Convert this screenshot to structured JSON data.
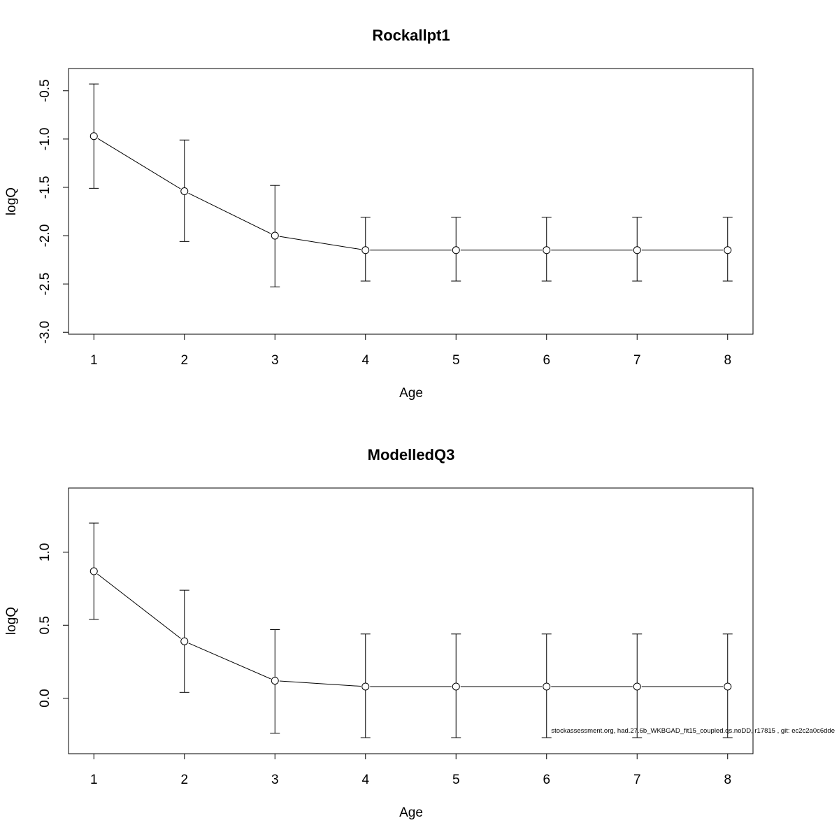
{
  "chart_data": [
    {
      "type": "line",
      "title": "Rockallpt1",
      "xlabel": "Age",
      "ylabel": "logQ",
      "x": [
        1,
        2,
        3,
        4,
        5,
        6,
        7,
        8
      ],
      "y": [
        -0.97,
        -1.54,
        -2.0,
        -2.15,
        -2.15,
        -2.15,
        -2.15,
        -2.15
      ],
      "lower": [
        -1.51,
        -2.06,
        -2.53,
        -2.47,
        -2.47,
        -2.47,
        -2.47,
        -2.47
      ],
      "upper": [
        -0.43,
        -1.01,
        -1.48,
        -1.81,
        -1.81,
        -1.81,
        -1.81,
        -1.81
      ],
      "xlim": [
        0.72,
        8.28
      ],
      "ylim": [
        -3.02,
        -0.27
      ],
      "xticks": [
        "1",
        "2",
        "3",
        "4",
        "5",
        "6",
        "7",
        "8"
      ],
      "yticks": [
        "-3.0",
        "-2.5",
        "-2.0",
        "-1.5",
        "-1.0",
        "-0.5"
      ],
      "ytick_values": [
        -3.0,
        -2.5,
        -2.0,
        -1.5,
        -1.0,
        -0.5
      ],
      "grid": false
    },
    {
      "type": "line",
      "title": "ModelledQ3",
      "xlabel": "Age",
      "ylabel": "logQ",
      "x": [
        1,
        2,
        3,
        4,
        5,
        6,
        7,
        8
      ],
      "y": [
        0.87,
        0.39,
        0.12,
        0.08,
        0.08,
        0.08,
        0.08,
        0.08
      ],
      "lower": [
        0.54,
        0.04,
        -0.24,
        -0.27,
        -0.27,
        -0.27,
        -0.27,
        -0.27
      ],
      "upper": [
        1.2,
        0.74,
        0.47,
        0.44,
        0.44,
        0.44,
        0.44,
        0.44
      ],
      "xlim": [
        0.72,
        8.28
      ],
      "ylim": [
        -0.38,
        1.44
      ],
      "xticks": [
        "1",
        "2",
        "3",
        "4",
        "5",
        "6",
        "7",
        "8"
      ],
      "yticks": [
        "0.0",
        "0.5",
        "1.0"
      ],
      "ytick_values": [
        0.0,
        0.5,
        1.0
      ],
      "grid": false
    }
  ],
  "footnote": "stockassessment.org, had.27.6b_WKBGAD_fit15_coupled.qs.noDD, r17815 , git: ec2c2a0c6dde"
}
